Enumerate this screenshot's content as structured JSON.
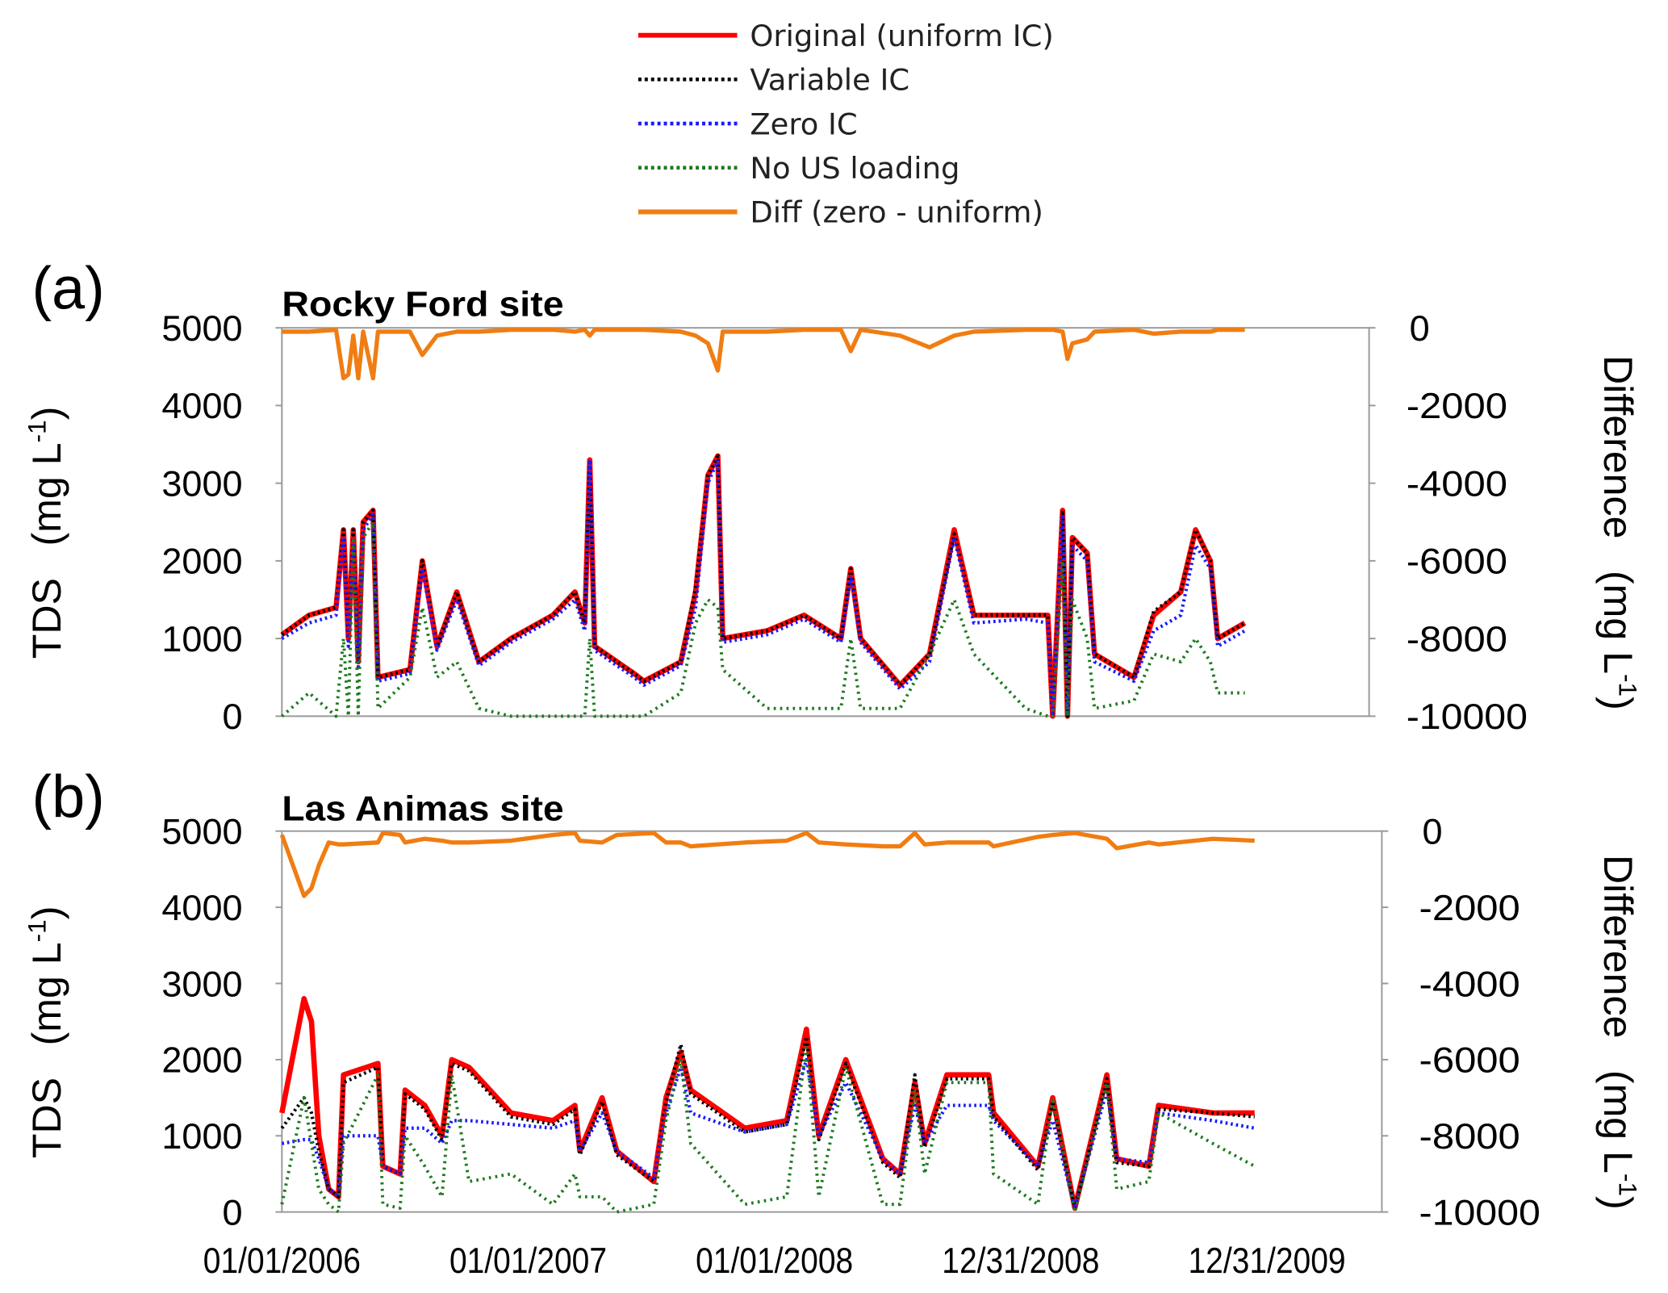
{
  "chart_data": {
    "type": "line",
    "legend": {
      "placement": "top-center",
      "entries": [
        {
          "key": "original",
          "label": "Original (uniform IC)",
          "color": "#ff0000",
          "style": "solid"
        },
        {
          "key": "variable",
          "label": "Variable IC",
          "color": "#000000",
          "style": "dotted"
        },
        {
          "key": "zero",
          "label": "Zero IC",
          "color": "#1a1aff",
          "style": "dotted"
        },
        {
          "key": "no_us",
          "label": "No US loading",
          "color": "#1e7a1e",
          "style": "dotted"
        },
        {
          "key": "diff",
          "label": "Diff  (zero - uniform)",
          "color": "#f07d12",
          "style": "solid"
        }
      ]
    },
    "x_unit": "years since 01/01/2006",
    "xlim": [
      0,
      4.41
    ],
    "x_ticks": [
      {
        "value": 0,
        "label": "01/01/2006"
      },
      {
        "value": 1,
        "label": "01/01/2007"
      },
      {
        "value": 2,
        "label": "01/01/2008"
      },
      {
        "value": 3,
        "label": "12/31/2008"
      },
      {
        "value": 4,
        "label": "12/31/2009"
      }
    ],
    "panels": [
      {
        "panel_label": "(a)",
        "title": "Rocky Ford site",
        "ylabel_left": [
          "TDS",
          "(mg L",
          "-1",
          ")"
        ],
        "ylabel_right": [
          "Difference",
          "(mg L",
          "-1",
          ")"
        ],
        "ylim_left": [
          0,
          5000
        ],
        "ylim_right": [
          -10000,
          0
        ],
        "yticks_left": [
          "0",
          "1000",
          "2000",
          "3000",
          "4000",
          "5000"
        ],
        "yticks_right": [
          "-10000",
          "-8000",
          "-6000",
          "-4000",
          "-2000",
          "0"
        ],
        "x": [
          0.0,
          0.11,
          0.22,
          0.25,
          0.27,
          0.29,
          0.31,
          0.33,
          0.37,
          0.39,
          0.52,
          0.57,
          0.63,
          0.71,
          0.8,
          0.93,
          1.1,
          1.19,
          1.23,
          1.25,
          1.27,
          1.43,
          1.47,
          1.62,
          1.68,
          1.73,
          1.77,
          1.79,
          1.97,
          2.12,
          2.27,
          2.31,
          2.35,
          2.51,
          2.63,
          2.73,
          2.81,
          3.02,
          3.11,
          3.13,
          3.17,
          3.19,
          3.21,
          3.27,
          3.3,
          3.46,
          3.54,
          3.65,
          3.71,
          3.77,
          3.8,
          3.91
        ],
        "series": {
          "original": [
            1050,
            1300,
            1400,
            2400,
            1000,
            2400,
            700,
            2500,
            2650,
            500,
            600,
            2000,
            900,
            1600,
            700,
            1000,
            1300,
            1600,
            1200,
            3300,
            900,
            550,
            450,
            700,
            1600,
            3100,
            3350,
            1000,
            1100,
            1300,
            1000,
            1900,
            1000,
            400,
            800,
            2400,
            1300,
            1300,
            1300,
            0,
            2650,
            0,
            2300,
            2100,
            800,
            500,
            1300,
            1600,
            2400,
            2000,
            1000,
            1200
          ],
          "variable": [
            1050,
            1300,
            1400,
            2400,
            1000,
            2400,
            700,
            2500,
            2650,
            500,
            600,
            2000,
            900,
            1600,
            700,
            1000,
            1300,
            1600,
            1200,
            3300,
            900,
            550,
            450,
            700,
            1650,
            3100,
            3350,
            1000,
            1100,
            1300,
            1000,
            1900,
            1000,
            400,
            800,
            2350,
            1300,
            1300,
            1300,
            0,
            2650,
            0,
            2300,
            2100,
            800,
            500,
            1350,
            1600,
            2400,
            2000,
            1000,
            1200
          ],
          "zero": [
            1000,
            1200,
            1300,
            2300,
            900,
            2300,
            600,
            2400,
            2600,
            450,
            550,
            1900,
            850,
            1500,
            650,
            950,
            1250,
            1500,
            1100,
            3300,
            850,
            500,
            400,
            650,
            1400,
            3000,
            3300,
            950,
            1050,
            1250,
            950,
            1800,
            950,
            350,
            700,
            2300,
            1200,
            1250,
            1200,
            0,
            2600,
            0,
            2200,
            2000,
            700,
            450,
            1100,
            1300,
            2200,
            1900,
            900,
            1100
          ],
          "no_us": [
            0,
            300,
            0,
            1000,
            0,
            2300,
            0,
            2300,
            2500,
            100,
            500,
            1400,
            500,
            700,
            100,
            0,
            0,
            0,
            0,
            1000,
            0,
            0,
            0,
            300,
            1200,
            1500,
            1400,
            600,
            100,
            100,
            100,
            1000,
            100,
            100,
            800,
            1500,
            800,
            100,
            0,
            0,
            2000,
            0,
            1500,
            1000,
            100,
            200,
            800,
            700,
            1000,
            700,
            300,
            300
          ],
          "diff": [
            -100,
            -100,
            -50,
            -1300,
            -1200,
            -200,
            -1300,
            -100,
            -1300,
            -100,
            -100,
            -700,
            -200,
            -100,
            -100,
            -50,
            -50,
            -100,
            -50,
            -200,
            -50,
            -50,
            -50,
            -100,
            -200,
            -400,
            -1100,
            -100,
            -100,
            -50,
            -50,
            -600,
            -50,
            -200,
            -500,
            -200,
            -100,
            -50,
            -50,
            -50,
            -100,
            -800,
            -400,
            -300,
            -100,
            -50,
            -150,
            -100,
            -100,
            -100,
            -50,
            -50
          ]
        }
      },
      {
        "panel_label": "(b)",
        "title": "Las Animas site",
        "ylabel_left": [
          "TDS",
          "(mg L",
          "-1",
          ")"
        ],
        "ylabel_right": [
          "Difference",
          "(mg L",
          "-1",
          ")"
        ],
        "ylim_left": [
          0,
          5000
        ],
        "ylim_right": [
          -10000,
          0
        ],
        "yticks_left": [
          "0",
          "1000",
          "2000",
          "3000",
          "4000",
          "5000"
        ],
        "yticks_right": [
          "-10000",
          "-8000",
          "-6000",
          "-4000",
          "-2000",
          "0"
        ],
        "x": [
          0.0,
          0.09,
          0.12,
          0.15,
          0.19,
          0.23,
          0.25,
          0.39,
          0.41,
          0.48,
          0.5,
          0.58,
          0.65,
          0.69,
          0.76,
          0.93,
          1.1,
          1.19,
          1.21,
          1.3,
          1.36,
          1.51,
          1.56,
          1.62,
          1.66,
          1.88,
          2.05,
          2.13,
          2.18,
          2.29,
          2.44,
          2.51,
          2.57,
          2.61,
          2.7,
          2.87,
          2.89,
          3.07,
          3.13,
          3.22,
          3.35,
          3.39,
          3.52,
          3.56,
          3.78,
          3.95
        ],
        "series": {
          "original": [
            1300,
            2800,
            2500,
            1000,
            300,
            200,
            1800,
            1950,
            600,
            500,
            1600,
            1400,
            1000,
            2000,
            1900,
            1300,
            1200,
            1400,
            800,
            1500,
            800,
            400,
            1500,
            2100,
            1600,
            1100,
            1200,
            2400,
            1000,
            2000,
            700,
            500,
            1700,
            900,
            1800,
            1800,
            1300,
            600,
            1500,
            50,
            1800,
            700,
            600,
            1400,
            1300,
            1300
          ],
          "variable": [
            1100,
            1500,
            1300,
            800,
            300,
            200,
            1700,
            1900,
            600,
            500,
            1550,
            1350,
            950,
            1950,
            1850,
            1250,
            1150,
            1350,
            750,
            1450,
            750,
            400,
            1450,
            2200,
            1550,
            1050,
            1150,
            2300,
            950,
            1950,
            650,
            450,
            1800,
            850,
            1750,
            1750,
            1250,
            550,
            1450,
            50,
            1750,
            650,
            600,
            1350,
            1300,
            1250
          ],
          "zero": [
            900,
            950,
            950,
            700,
            300,
            200,
            1000,
            1000,
            600,
            500,
            1100,
            1100,
            900,
            1200,
            1200,
            1150,
            1100,
            1200,
            800,
            1300,
            800,
            450,
            1300,
            1900,
            1300,
            1050,
            1150,
            2000,
            1000,
            1700,
            700,
            500,
            1400,
            900,
            1400,
            1400,
            1200,
            600,
            1200,
            50,
            1600,
            700,
            650,
            1300,
            1200,
            1100
          ],
          "no_us": [
            100,
            1500,
            900,
            300,
            100,
            0,
            900,
            1800,
            100,
            50,
            1000,
            600,
            200,
            1800,
            400,
            500,
            100,
            500,
            200,
            200,
            0,
            100,
            1200,
            2000,
            900,
            100,
            200,
            2200,
            200,
            1900,
            100,
            100,
            1600,
            500,
            1700,
            1700,
            500,
            100,
            1500,
            0,
            1700,
            300,
            400,
            1300,
            900,
            600
          ],
          "diff": [
            -100,
            -1700,
            -1500,
            -900,
            -300,
            -350,
            -350,
            -300,
            -50,
            -100,
            -300,
            -200,
            -250,
            -300,
            -300,
            -250,
            -100,
            -50,
            -250,
            -300,
            -100,
            -50,
            -300,
            -300,
            -400,
            -300,
            -250,
            -50,
            -300,
            -350,
            -400,
            -400,
            -50,
            -350,
            -300,
            -300,
            -400,
            -150,
            -100,
            -50,
            -200,
            -450,
            -300,
            -350,
            -200,
            -250
          ]
        }
      }
    ]
  }
}
